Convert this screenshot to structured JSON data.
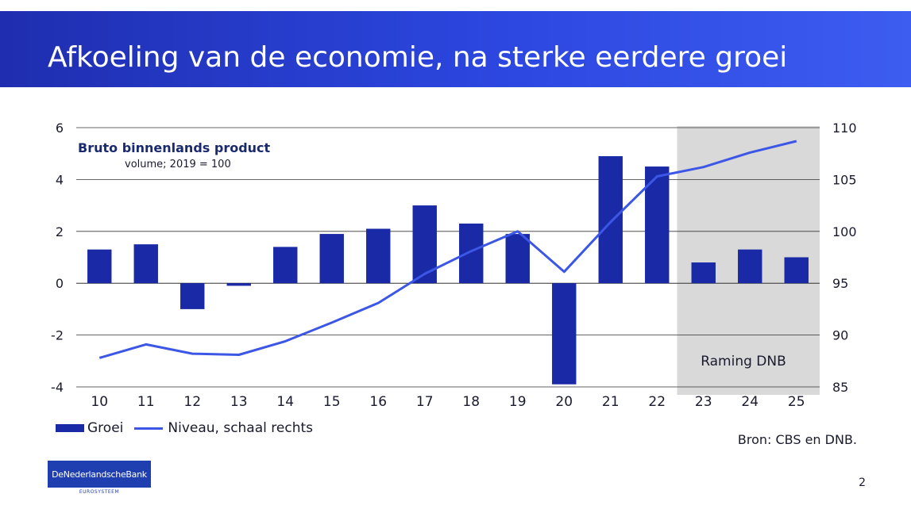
{
  "slide": {
    "title": "Afkoeling van de economie, na sterke eerdere groei",
    "source": "Bron: CBS en DNB.",
    "page_number": "2",
    "logo_text": "DeNederlandscheBank",
    "logo_subtext": "EUROSYSTEEM"
  },
  "colors": {
    "banner": "#2c47e0",
    "bars": "#1a2aa6",
    "line": "#3c56e6",
    "forecast_shade": "#d9d9d9"
  },
  "chart_data": {
    "type": "bar",
    "title": "Bruto binnenlands product",
    "subtitle": "volume; 2019 = 100",
    "categories": [
      "10",
      "11",
      "12",
      "13",
      "14",
      "15",
      "16",
      "17",
      "18",
      "19",
      "20",
      "21",
      "22",
      "23",
      "24",
      "25"
    ],
    "series": [
      {
        "name": "Groei",
        "type": "bar",
        "axis": "left",
        "values": [
          1.3,
          1.5,
          -1.0,
          -0.1,
          1.4,
          1.9,
          2.1,
          3.0,
          2.3,
          1.9,
          -3.9,
          4.9,
          4.5,
          0.8,
          1.3,
          1.0
        ]
      },
      {
        "name": "Niveau, schaal rechts",
        "type": "line",
        "axis": "right",
        "values": [
          87.8,
          89.1,
          88.2,
          88.1,
          89.4,
          91.2,
          93.1,
          95.9,
          98.1,
          100.0,
          96.1,
          100.9,
          105.3,
          106.2,
          107.6,
          108.7
        ]
      }
    ],
    "y_left": {
      "ylim": [
        -4,
        6
      ],
      "ticks": [
        "-4",
        "-2",
        "0",
        "2",
        "4",
        "6"
      ]
    },
    "y_right": {
      "ylim": [
        85,
        110
      ],
      "ticks": [
        "85",
        "90",
        "95",
        "100",
        "105",
        "110"
      ]
    },
    "forecast_region": {
      "from_category": "23",
      "to_category": "25",
      "label": "Raming DNB"
    },
    "gridlines": true,
    "legend_position": "bottom-left"
  }
}
